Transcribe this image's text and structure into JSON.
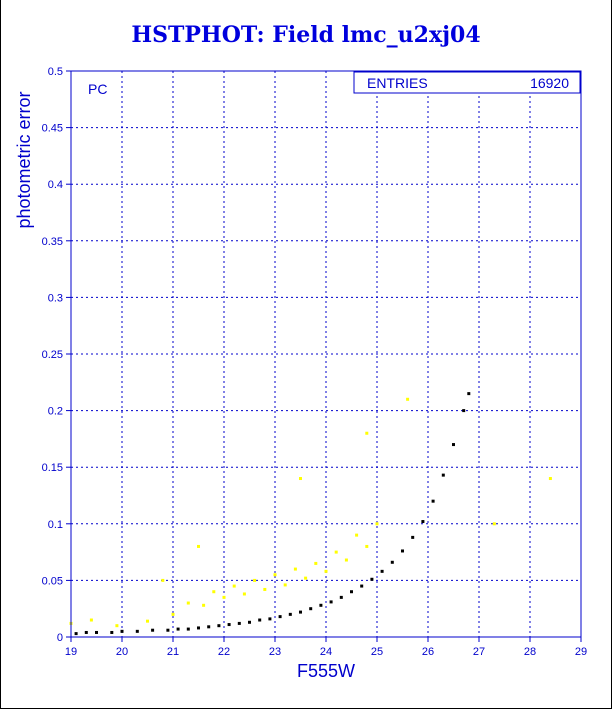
{
  "title": "HSTPHOT: Field lmc_u2xj04",
  "panel_label": "PC",
  "stats_box": {
    "label": "ENTRIES",
    "value": "16920"
  },
  "colors": {
    "axis": "#0000cc",
    "grid": "#0000cc",
    "title": "#0000dd",
    "series_black": "#000000",
    "series_yellow": "#ffff00"
  },
  "chart_data": {
    "type": "scatter",
    "title": "HSTPHOT: Field lmc_u2xj04",
    "xlabel": "F555W",
    "ylabel": "photometric error",
    "xlim": [
      19,
      29
    ],
    "ylim": [
      0,
      0.5
    ],
    "x_ticks": [
      19,
      20,
      21,
      22,
      23,
      24,
      25,
      26,
      27,
      28,
      29
    ],
    "y_ticks": [
      0,
      0.05,
      0.1,
      0.15,
      0.2,
      0.25,
      0.3,
      0.35,
      0.4,
      0.45,
      0.5
    ],
    "grid": true,
    "entries": 16920,
    "series": [
      {
        "color": "#000000",
        "points": [
          [
            19.1,
            0.003
          ],
          [
            19.3,
            0.004
          ],
          [
            19.5,
            0.004
          ],
          [
            19.8,
            0.004
          ],
          [
            20.0,
            0.005
          ],
          [
            20.3,
            0.005
          ],
          [
            20.6,
            0.006
          ],
          [
            20.9,
            0.006
          ],
          [
            21.1,
            0.007
          ],
          [
            21.3,
            0.007
          ],
          [
            21.5,
            0.008
          ],
          [
            21.7,
            0.009
          ],
          [
            21.9,
            0.01
          ],
          [
            22.1,
            0.011
          ],
          [
            22.3,
            0.012
          ],
          [
            22.5,
            0.013
          ],
          [
            22.7,
            0.015
          ],
          [
            22.9,
            0.016
          ],
          [
            23.1,
            0.018
          ],
          [
            23.3,
            0.02
          ],
          [
            23.5,
            0.022
          ],
          [
            23.7,
            0.025
          ],
          [
            23.9,
            0.028
          ],
          [
            24.1,
            0.031
          ],
          [
            24.3,
            0.035
          ],
          [
            24.5,
            0.04
          ],
          [
            24.7,
            0.045
          ],
          [
            24.9,
            0.051
          ],
          [
            25.1,
            0.058
          ],
          [
            25.3,
            0.066
          ],
          [
            25.5,
            0.076
          ],
          [
            25.7,
            0.088
          ],
          [
            25.9,
            0.102
          ],
          [
            26.1,
            0.12
          ],
          [
            26.3,
            0.143
          ],
          [
            26.5,
            0.17
          ],
          [
            26.7,
            0.2
          ],
          [
            26.8,
            0.215
          ]
        ]
      },
      {
        "color": "#ffff00",
        "points": [
          [
            19.0,
            0.012
          ],
          [
            19.4,
            0.015
          ],
          [
            19.9,
            0.01
          ],
          [
            20.5,
            0.014
          ],
          [
            21.0,
            0.02
          ],
          [
            21.3,
            0.03
          ],
          [
            21.6,
            0.028
          ],
          [
            21.8,
            0.04
          ],
          [
            22.0,
            0.035
          ],
          [
            22.2,
            0.045
          ],
          [
            22.4,
            0.038
          ],
          [
            22.6,
            0.05
          ],
          [
            22.8,
            0.042
          ],
          [
            23.0,
            0.055
          ],
          [
            23.2,
            0.046
          ],
          [
            23.4,
            0.06
          ],
          [
            23.6,
            0.052
          ],
          [
            23.8,
            0.065
          ],
          [
            24.0,
            0.058
          ],
          [
            24.2,
            0.075
          ],
          [
            24.4,
            0.068
          ],
          [
            24.6,
            0.09
          ],
          [
            24.8,
            0.08
          ],
          [
            25.0,
            0.1
          ],
          [
            23.5,
            0.14
          ],
          [
            24.8,
            0.18
          ],
          [
            25.6,
            0.21
          ],
          [
            21.5,
            0.08
          ],
          [
            20.8,
            0.05
          ],
          [
            27.3,
            0.1
          ],
          [
            28.4,
            0.14
          ]
        ]
      }
    ]
  }
}
